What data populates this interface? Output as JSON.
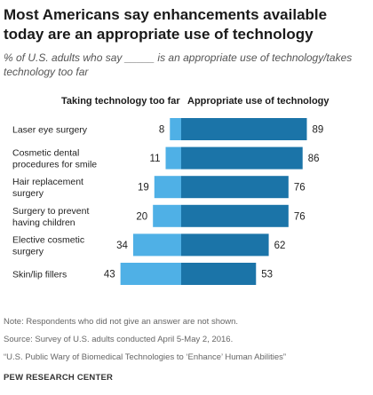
{
  "title": "Most Americans say enhancements  available today are an appropriate  use of technology",
  "subtitle": "% of U.S. adults who say _____ is an appropriate use of technology/takes technology too far",
  "colors": {
    "too_far": "#4fb0e6",
    "appropriate": "#1b74a8"
  },
  "chart_data": {
    "type": "bar",
    "orientation": "horizontal-diverging",
    "categories": [
      [
        "Laser eye surgery"
      ],
      [
        "Cosmetic dental",
        "procedures for smile"
      ],
      [
        "Hair replacement",
        "surgery"
      ],
      [
        "Surgery to prevent",
        "having children"
      ],
      [
        "Elective cosmetic",
        "surgery"
      ],
      [
        "Skin/lip fillers"
      ]
    ],
    "series": [
      {
        "name": "Taking technology too far",
        "values": [
          8,
          11,
          19,
          20,
          34,
          43
        ]
      },
      {
        "name": "Appropriate  use of technology",
        "values": [
          89,
          86,
          76,
          76,
          62,
          53
        ]
      }
    ]
  },
  "notes": {
    "note": "Note: Respondents who did not give an answer are not shown.",
    "source": "Source: Survey of U.S. adults conducted April 5-May 2, 2016.",
    "report": "“U.S. Public Wary of Biomedical Technologies to ‘Enhance’ Human Abilities”",
    "brand": "PEW RESEARCH CENTER"
  }
}
